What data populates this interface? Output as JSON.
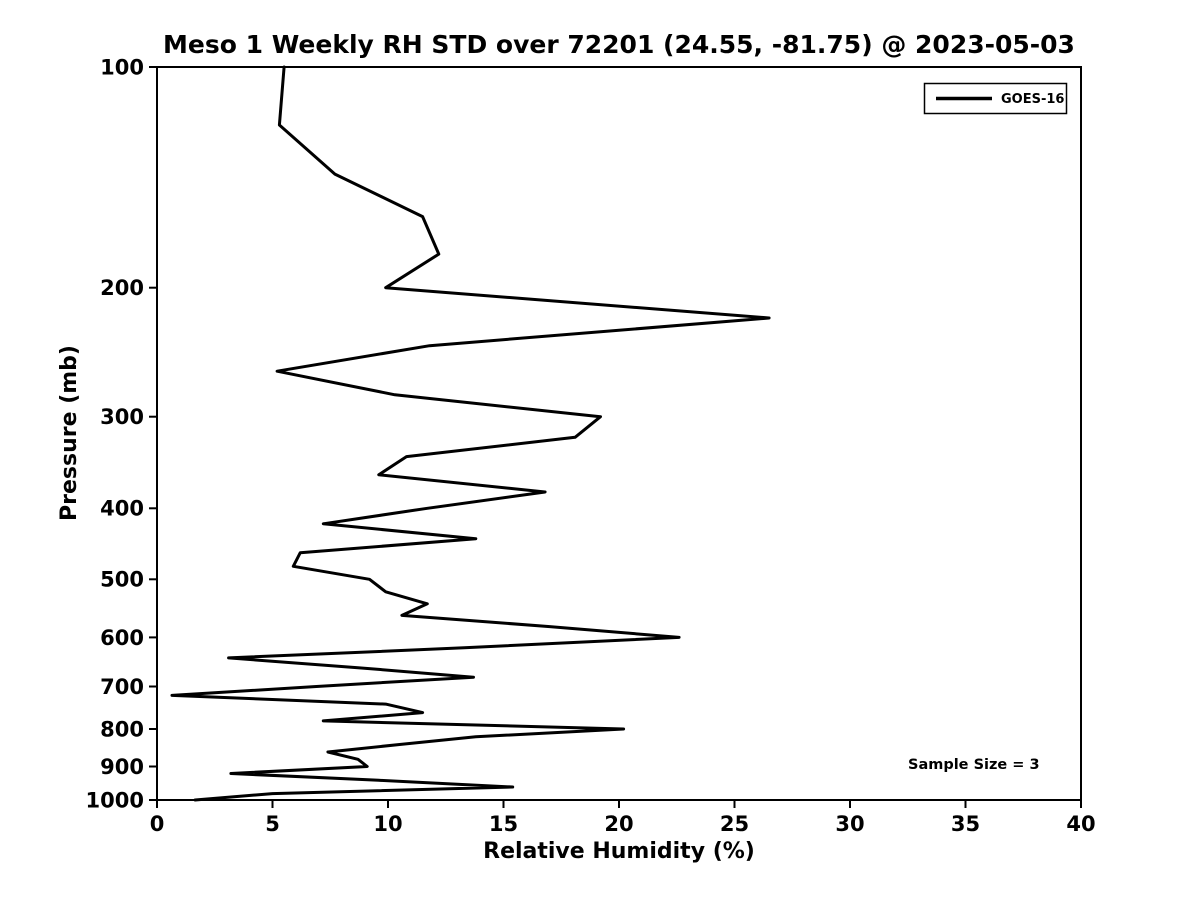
{
  "figure": {
    "background_color": "#ffffff",
    "line_color": "#000000"
  },
  "chart_data": {
    "type": "line",
    "title": "Meso 1 Weekly RH STD over 72201 (24.55, -81.75) @ 2023-05-03",
    "xlabel": "Relative Humidity (%)",
    "ylabel": "Pressure (mb)",
    "xlim": [
      0,
      40
    ],
    "ylim": [
      100,
      1000
    ],
    "y_scale": "log",
    "y_inverted": true,
    "grid": false,
    "x_ticks": [
      0,
      5,
      10,
      15,
      20,
      25,
      30,
      35,
      40
    ],
    "y_ticks": [
      100,
      200,
      300,
      400,
      500,
      600,
      700,
      800,
      900,
      1000
    ],
    "legend_position": "upper right",
    "annotation": "Sample Size = 3",
    "series": [
      {
        "name": "GOES-16",
        "color": "#000000",
        "pressure_mb": [
          100,
          120,
          140,
          160,
          180,
          200,
          220,
          240,
          260,
          280,
          300,
          320,
          340,
          360,
          380,
          400,
          420,
          440,
          460,
          480,
          500,
          520,
          540,
          560,
          580,
          600,
          620,
          640,
          660,
          680,
          700,
          720,
          740,
          760,
          780,
          800,
          820,
          840,
          860,
          880,
          900,
          920,
          940,
          960,
          980,
          1000
        ],
        "rh_std_percent": [
          5.5,
          5.3,
          7.7,
          11.5,
          12.2,
          9.9,
          26.5,
          11.8,
          5.2,
          10.3,
          19.2,
          18.1,
          10.8,
          9.6,
          16.8,
          11.7,
          7.2,
          13.8,
          6.2,
          5.9,
          9.2,
          9.9,
          11.7,
          10.6,
          17.0,
          22.6,
          13.3,
          3.1,
          8.7,
          13.7,
          6.9,
          0.65,
          9.9,
          11.5,
          7.2,
          20.2,
          13.8,
          10.5,
          7.4,
          8.7,
          9.1,
          3.2,
          9.6,
          15.4,
          5.0,
          1.65
        ]
      }
    ]
  }
}
